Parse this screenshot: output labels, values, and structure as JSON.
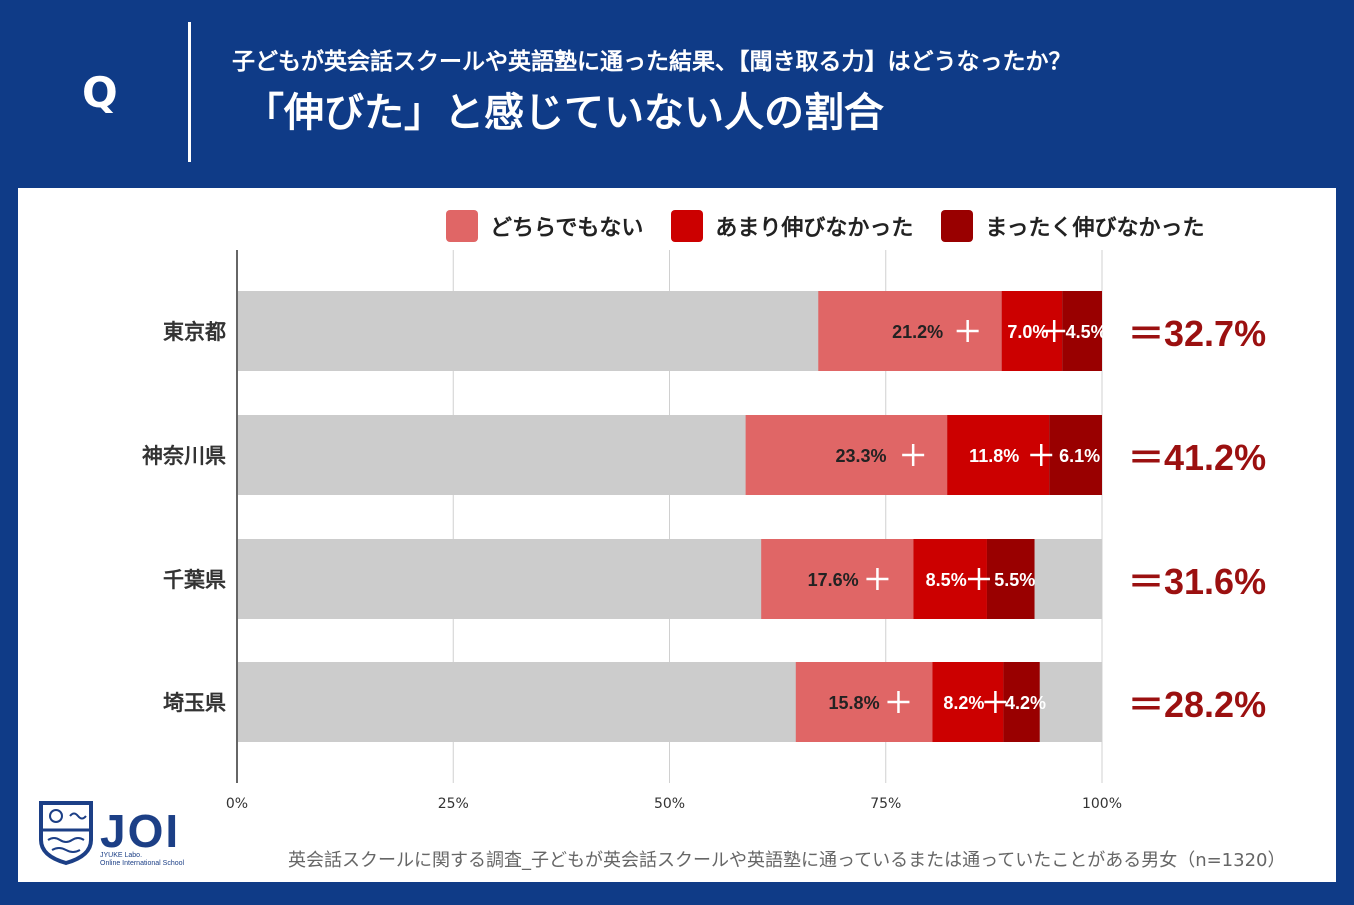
{
  "header": {
    "q_label": "Q",
    "question": "子どもが英会話スクールや英語塾に通った結果、【聞き取る力】はどうなったか？",
    "title": "「伸びた」と感じていない人の割合"
  },
  "colors": {
    "background": "#0f3b87",
    "gray": "#cccccc",
    "series": [
      "#e06666",
      "#cc0000",
      "#990000"
    ],
    "total": "#9b1010"
  },
  "chart_data": {
    "type": "bar",
    "orientation": "horizontal",
    "stacked": true,
    "categories": [
      "東京都",
      "神奈川県",
      "千葉県",
      "埼玉県"
    ],
    "series": [
      {
        "name": "どちらでもない",
        "values": [
          21.2,
          23.3,
          17.6,
          15.8
        ],
        "labels": [
          "21.2%",
          "23.3%",
          "17.6%",
          "15.8%"
        ]
      },
      {
        "name": "あまり伸びなかった",
        "values": [
          7.0,
          11.8,
          8.5,
          8.2
        ],
        "labels": [
          "7.0%",
          "11.8%",
          "8.5%",
          "8.2%"
        ]
      },
      {
        "name": "まったく伸びなかった",
        "values": [
          4.5,
          6.1,
          5.5,
          4.2
        ],
        "labels": [
          "4.5%",
          "6.1%",
          "5.5%",
          "4.2%"
        ]
      }
    ],
    "seg_ranges": [
      [
        [
          67.2,
          88.4
        ],
        [
          88.4,
          95.4
        ],
        [
          95.4,
          100
        ]
      ],
      [
        [
          58.8,
          82.1
        ],
        [
          82.1,
          93.9
        ],
        [
          93.9,
          100
        ]
      ],
      [
        [
          60.6,
          78.2
        ],
        [
          78.2,
          86.7
        ],
        [
          86.7,
          92.2
        ]
      ],
      [
        [
          64.6,
          80.4
        ],
        [
          80.4,
          88.6
        ],
        [
          88.6,
          92.8
        ]
      ]
    ],
    "totals": [
      "＝32.7%",
      "＝41.2%",
      "＝31.6%",
      "＝28.2%"
    ],
    "xticks": [
      "0%",
      "25%",
      "50%",
      "75%",
      "100%"
    ],
    "xlim": [
      0,
      100
    ],
    "grid": true,
    "legend_position": "top-right"
  },
  "footer": {
    "note": "英会話スクールに関する調査_子どもが英会話スクールや英語塾に通っているまたは通っていたことがある男女（n=1320）"
  },
  "logo": {
    "text": "JOI",
    "sub1": "JYUKE Labo.",
    "sub2": "Online International School"
  }
}
